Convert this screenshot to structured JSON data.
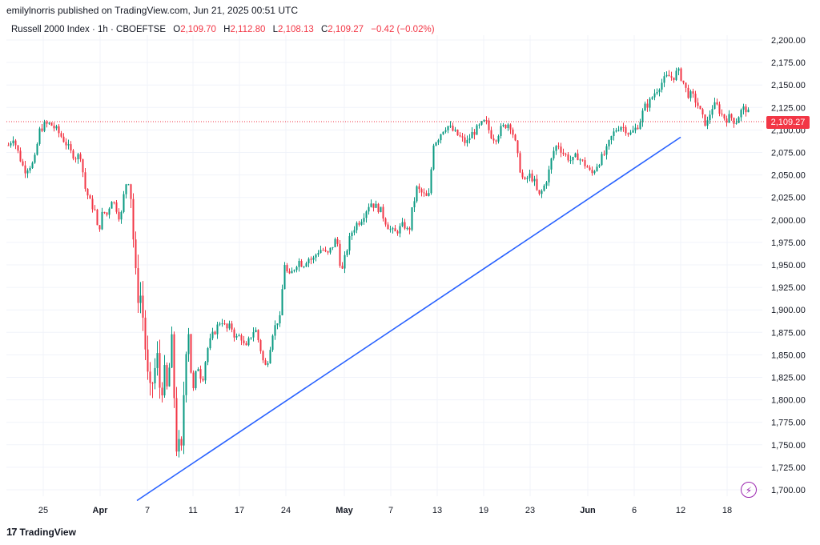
{
  "header": {
    "text": "emilylnorris published on TradingView.com, Jun 21, 2025 00:51 UTC"
  },
  "legend": {
    "symbol": "Russell 2000 Index · 1h · CBOEFTSE",
    "open_label": "O",
    "open": "2,109.70",
    "high_label": "H",
    "high": "2,112.80",
    "low_label": "L",
    "low": "2,108.13",
    "close_label": "C",
    "close": "2,109.27",
    "change": "−0.42 (−0.02%)"
  },
  "price_tag": "2,109.27",
  "footer": {
    "logo": "17",
    "brand": "TradingView"
  },
  "icons": {
    "alert": "lightning-icon"
  },
  "colors": {
    "up": "#089981",
    "down": "#f23645",
    "trendline": "#2962ff",
    "last_price_line": "#f23645"
  },
  "chart_data": {
    "type": "candlestick",
    "y_axis": {
      "range": [
        1690,
        2210
      ],
      "ticks": [
        "2,200.00",
        "2,175.00",
        "2,150.00",
        "2,125.00",
        "2,100.00",
        "2,075.00",
        "2,050.00",
        "2,025.00",
        "2,000.00",
        "1,975.00",
        "1,950.00",
        "1,925.00",
        "1,900.00",
        "1,875.00",
        "1,850.00",
        "1,825.00",
        "1,800.00",
        "1,775.00",
        "1,750.00",
        "1,725.00",
        "1,700.00"
      ]
    },
    "x_axis": {
      "ticks": [
        {
          "label": "25",
          "bold": false
        },
        {
          "label": "Apr",
          "bold": true
        },
        {
          "label": "7",
          "bold": false
        },
        {
          "label": "11",
          "bold": false
        },
        {
          "label": "17",
          "bold": false
        },
        {
          "label": "24",
          "bold": false
        },
        {
          "label": "May",
          "bold": true
        },
        {
          "label": "7",
          "bold": false
        },
        {
          "label": "13",
          "bold": false
        },
        {
          "label": "19",
          "bold": false
        },
        {
          "label": "23",
          "bold": false
        },
        {
          "label": "Jun",
          "bold": true
        },
        {
          "label": "6",
          "bold": false
        },
        {
          "label": "12",
          "bold": false
        },
        {
          "label": "18",
          "bold": false
        }
      ]
    },
    "last_price": 2109.27,
    "trendline": {
      "from": {
        "date": "Apr 7",
        "value": 1688
      },
      "to": {
        "date": "Jun 12",
        "value": 2092
      }
    },
    "path": [
      [
        0,
        2083
      ],
      [
        6,
        2092
      ],
      [
        14,
        2070
      ],
      [
        20,
        2055
      ],
      [
        26,
        2060
      ],
      [
        30,
        2062
      ],
      [
        34,
        2070
      ],
      [
        38,
        2098
      ],
      [
        44,
        2105
      ],
      [
        52,
        2107
      ],
      [
        60,
        2100
      ],
      [
        66,
        2093
      ],
      [
        72,
        2085
      ],
      [
        78,
        2075
      ],
      [
        84,
        2070
      ],
      [
        90,
        2072
      ],
      [
        96,
        2035
      ],
      [
        102,
        2020
      ],
      [
        108,
        2010
      ],
      [
        112,
        1985
      ],
      [
        118,
        2010
      ],
      [
        124,
        2005
      ],
      [
        128,
        2025
      ],
      [
        134,
        2015
      ],
      [
        140,
        2000
      ],
      [
        146,
        2040
      ],
      [
        152,
        2045
      ],
      [
        156,
        1980
      ],
      [
        160,
        1920
      ],
      [
        166,
        1915
      ],
      [
        170,
        1870
      ],
      [
        176,
        1800
      ],
      [
        182,
        1830
      ],
      [
        186,
        1845
      ],
      [
        190,
        1805
      ],
      [
        194,
        1830
      ],
      [
        198,
        1810
      ],
      [
        204,
        1860
      ],
      [
        210,
        1750
      ],
      [
        216,
        1740
      ],
      [
        220,
        1830
      ],
      [
        224,
        1895
      ],
      [
        230,
        1805
      ],
      [
        236,
        1840
      ],
      [
        242,
        1820
      ],
      [
        248,
        1855
      ],
      [
        254,
        1870
      ],
      [
        260,
        1880
      ],
      [
        266,
        1890
      ],
      [
        272,
        1878
      ],
      [
        278,
        1882
      ],
      [
        284,
        1868
      ],
      [
        290,
        1872
      ],
      [
        296,
        1855
      ],
      [
        302,
        1870
      ],
      [
        308,
        1880
      ],
      [
        314,
        1860
      ],
      [
        320,
        1835
      ],
      [
        324,
        1845
      ],
      [
        330,
        1875
      ],
      [
        336,
        1888
      ],
      [
        340,
        1890
      ],
      [
        344,
        1955
      ],
      [
        350,
        1935
      ],
      [
        356,
        1945
      ],
      [
        362,
        1955
      ],
      [
        368,
        1950
      ],
      [
        374,
        1958
      ],
      [
        380,
        1955
      ],
      [
        386,
        1965
      ],
      [
        392,
        1968
      ],
      [
        398,
        1960
      ],
      [
        404,
        1970
      ],
      [
        410,
        1980
      ],
      [
        416,
        1940
      ],
      [
        422,
        1965
      ],
      [
        428,
        1985
      ],
      [
        434,
        1995
      ],
      [
        440,
        2000
      ],
      [
        446,
        2010
      ],
      [
        452,
        2020
      ],
      [
        458,
        2015
      ],
      [
        464,
        2012
      ],
      [
        470,
        2000
      ],
      [
        476,
        1990
      ],
      [
        482,
        1985
      ],
      [
        488,
        1990
      ],
      [
        494,
        1995
      ],
      [
        500,
        1985
      ],
      [
        504,
        2010
      ],
      [
        510,
        2035
      ],
      [
        516,
        2030
      ],
      [
        522,
        2025
      ],
      [
        526,
        2028
      ],
      [
        530,
        2085
      ],
      [
        536,
        2090
      ],
      [
        542,
        2100
      ],
      [
        548,
        2105
      ],
      [
        554,
        2100
      ],
      [
        560,
        2095
      ],
      [
        566,
        2090
      ],
      [
        572,
        2085
      ],
      [
        578,
        2095
      ],
      [
        584,
        2100
      ],
      [
        590,
        2105
      ],
      [
        596,
        2110
      ],
      [
        602,
        2095
      ],
      [
        608,
        2090
      ],
      [
        614,
        2100
      ],
      [
        620,
        2105
      ],
      [
        626,
        2108
      ],
      [
        632,
        2090
      ],
      [
        638,
        2060
      ],
      [
        644,
        2040
      ],
      [
        650,
        2050
      ],
      [
        656,
        2045
      ],
      [
        662,
        2025
      ],
      [
        668,
        2035
      ],
      [
        674,
        2050
      ],
      [
        680,
        2075
      ],
      [
        686,
        2085
      ],
      [
        692,
        2075
      ],
      [
        698,
        2070
      ],
      [
        704,
        2065
      ],
      [
        710,
        2072
      ],
      [
        716,
        2065
      ],
      [
        722,
        2060
      ],
      [
        728,
        2050
      ],
      [
        734,
        2060
      ],
      [
        740,
        2068
      ],
      [
        746,
        2075
      ],
      [
        752,
        2090
      ],
      [
        758,
        2100
      ],
      [
        764,
        2105
      ],
      [
        770,
        2102
      ],
      [
        776,
        2095
      ],
      [
        782,
        2100
      ],
      [
        788,
        2108
      ],
      [
        794,
        2125
      ],
      [
        800,
        2130
      ],
      [
        806,
        2140
      ],
      [
        812,
        2148
      ],
      [
        818,
        2155
      ],
      [
        824,
        2160
      ],
      [
        830,
        2158
      ],
      [
        836,
        2166
      ],
      [
        842,
        2155
      ],
      [
        848,
        2140
      ],
      [
        854,
        2138
      ],
      [
        860,
        2130
      ],
      [
        866,
        2115
      ],
      [
        872,
        2105
      ],
      [
        878,
        2125
      ],
      [
        884,
        2128
      ],
      [
        890,
        2118
      ],
      [
        896,
        2112
      ],
      [
        902,
        2115
      ],
      [
        908,
        2108
      ],
      [
        914,
        2120
      ],
      [
        920,
        2125
      ],
      [
        926,
        2115
      ],
      [
        932,
        2108
      ],
      [
        936,
        2109
      ]
    ]
  }
}
